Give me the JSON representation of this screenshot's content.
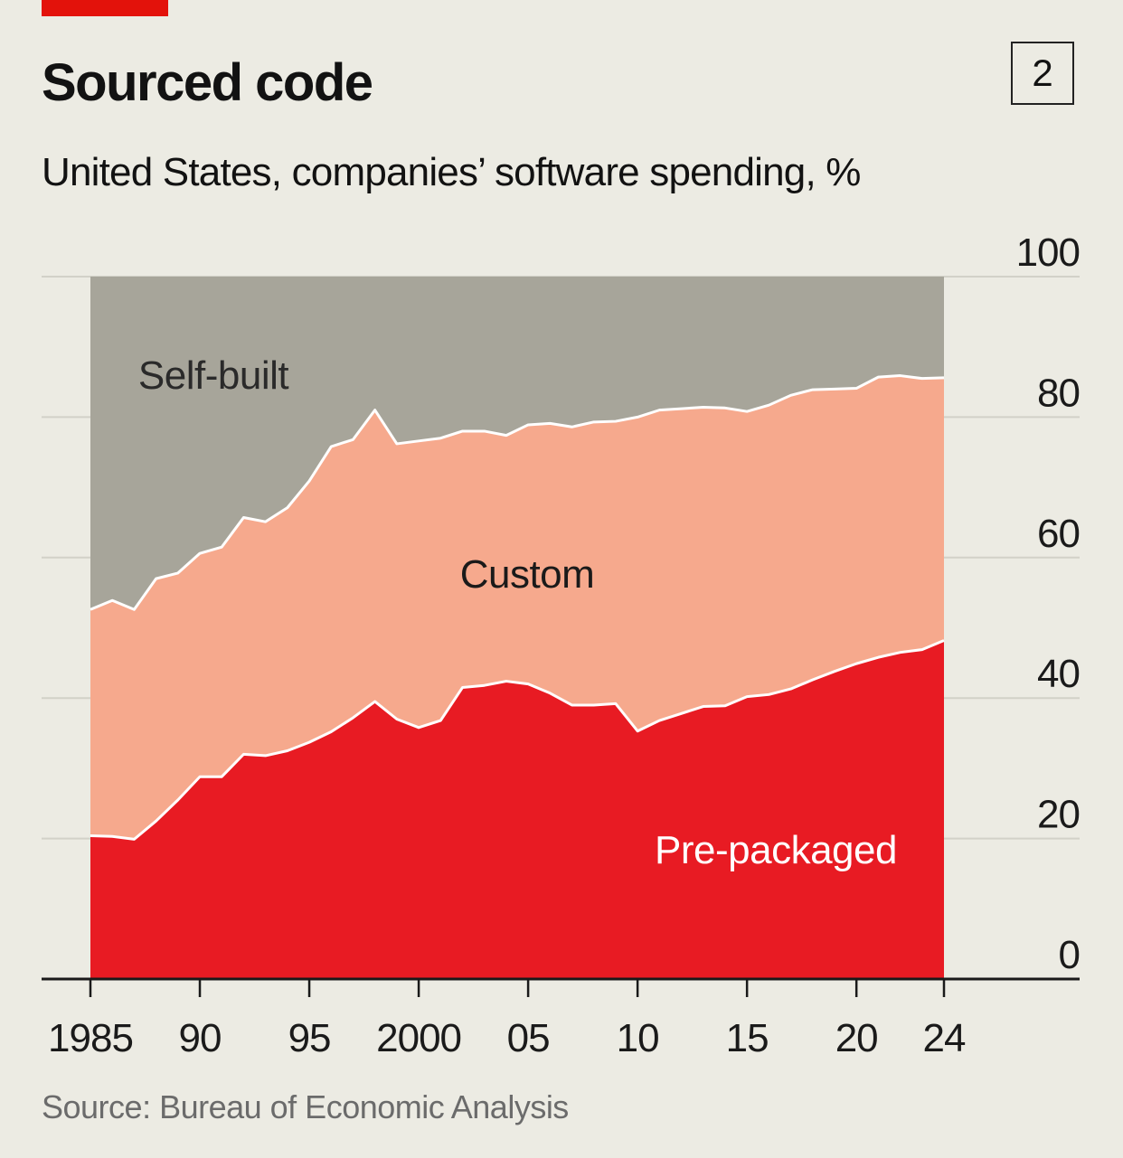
{
  "header": {
    "title": "Sourced code",
    "chart_number": "2",
    "subtitle": "United States, companies’ software spending, %",
    "source": "Source: Bureau of Economic Analysis"
  },
  "colors": {
    "background": "#ecebe3",
    "accent": "#e3120b",
    "pre_packaged": "#e81b23",
    "custom": "#f6a98d",
    "self_built": "#a7a59a",
    "gridline": "#d2d1c8",
    "axis": "#1a1a1a"
  },
  "chart_data": {
    "type": "area",
    "stacked": true,
    "title": "Sourced code",
    "subtitle": "United States, companies’ software spending, %",
    "xlim": [
      1985,
      2024
    ],
    "ylim": [
      0,
      100
    ],
    "y_ticks": [
      0,
      20,
      40,
      60,
      80,
      100
    ],
    "y_tick_labels": [
      "0",
      "20",
      "40",
      "60",
      "80",
      "100"
    ],
    "x_ticks": [
      1985,
      1990,
      1995,
      2000,
      2005,
      2010,
      2015,
      2020,
      2024
    ],
    "x_tick_labels": [
      "1985",
      "90",
      "95",
      "2000",
      "05",
      "10",
      "15",
      "20",
      "24"
    ],
    "y_axis_side": "right",
    "grid": true,
    "x": [
      1985,
      1986,
      1987,
      1988,
      1989,
      1990,
      1991,
      1992,
      1993,
      1994,
      1995,
      1996,
      1997,
      1998,
      1999,
      2000,
      2001,
      2002,
      2003,
      2004,
      2005,
      2006,
      2007,
      2008,
      2009,
      2010,
      2011,
      2012,
      2013,
      2014,
      2015,
      2016,
      2017,
      2018,
      2019,
      2020,
      2021,
      2022,
      2023,
      2024
    ],
    "series": [
      {
        "name": "Pre-packaged",
        "values": [
          20.4,
          20.3,
          19.9,
          22.5,
          25.5,
          28.8,
          28.8,
          32.0,
          31.8,
          32.5,
          33.7,
          35.2,
          37.2,
          39.5,
          37.0,
          35.8,
          36.8,
          41.5,
          41.8,
          42.4,
          42.0,
          40.7,
          39.0,
          39.0,
          39.2,
          35.3,
          36.8,
          37.8,
          38.8,
          38.9,
          40.2,
          40.5,
          41.3,
          42.6,
          43.8,
          44.9,
          45.8,
          46.5,
          46.9,
          48.2
        ]
      },
      {
        "name": "Custom",
        "values": [
          32.2,
          33.6,
          32.7,
          34.5,
          32.3,
          31.8,
          32.7,
          33.7,
          33.3,
          34.6,
          37.2,
          40.6,
          39.6,
          41.5,
          39.2,
          40.8,
          40.2,
          36.5,
          36.2,
          35.0,
          36.9,
          38.4,
          39.6,
          40.3,
          40.2,
          44.7,
          44.2,
          43.4,
          42.6,
          42.4,
          40.6,
          41.2,
          41.8,
          41.3,
          40.2,
          39.2,
          39.9,
          39.4,
          38.6,
          37.4
        ]
      },
      {
        "name": "Self-built",
        "values": [
          47.4,
          46.1,
          47.4,
          43.0,
          42.2,
          39.4,
          38.5,
          34.3,
          34.9,
          32.9,
          29.1,
          24.2,
          23.2,
          19.0,
          23.8,
          23.4,
          23.0,
          22.0,
          22.0,
          22.6,
          21.1,
          20.9,
          21.4,
          20.7,
          20.6,
          20.0,
          19.0,
          18.8,
          18.6,
          18.7,
          19.2,
          18.3,
          16.9,
          16.1,
          16.0,
          15.9,
          14.3,
          14.1,
          14.5,
          14.4
        ]
      }
    ],
    "annotations": [
      "Self-built",
      "Custom",
      "Pre-packaged"
    ]
  }
}
